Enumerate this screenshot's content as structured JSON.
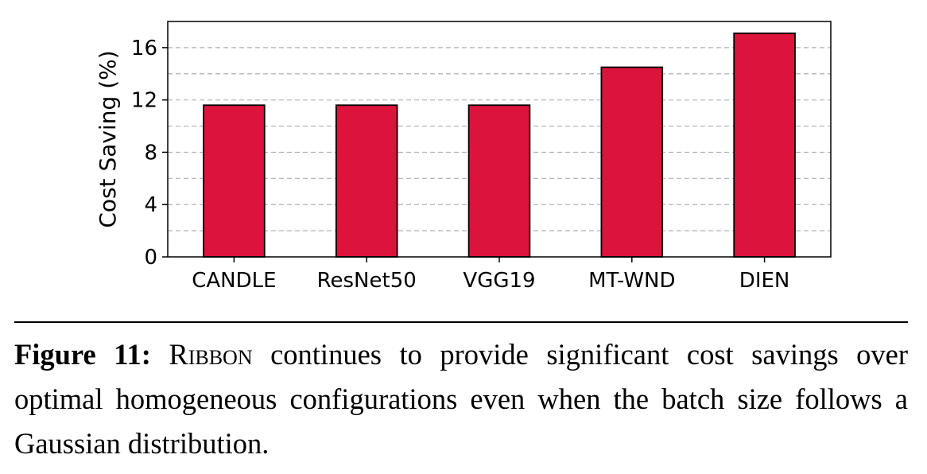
{
  "chart_data": {
    "type": "bar",
    "categories": [
      "CANDLE",
      "ResNet50",
      "VGG19",
      "MT-WND",
      "DIEN"
    ],
    "values": [
      11.6,
      11.6,
      11.6,
      14.5,
      17.1
    ],
    "ylabel": "Cost Saving (%)",
    "xlabel": "",
    "ylim": [
      0,
      18
    ],
    "yticks": [
      0,
      4,
      8,
      12,
      16
    ],
    "grid": "horizontal dashed (major and minor)",
    "bar_color": "#dc143c",
    "bar_edge_color": "#000000"
  },
  "caption": {
    "label": "Figure 11:",
    "system_name": "Ribbon",
    "text": " continues to provide significant cost savings over optimal homogeneous configurations even when the batch size follows a Gaussian distribution."
  }
}
